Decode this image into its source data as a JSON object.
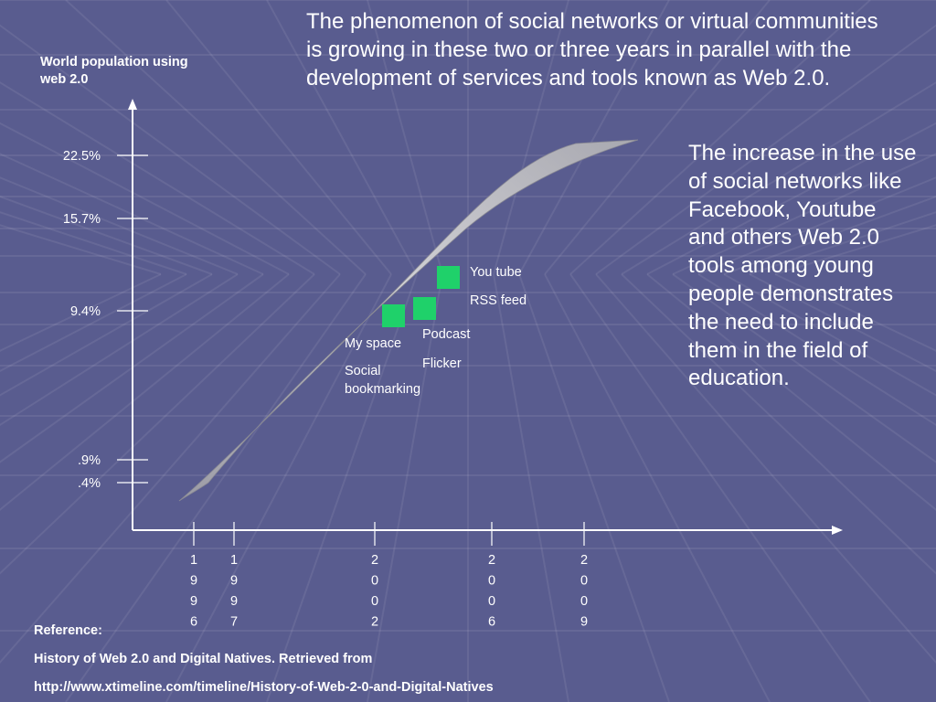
{
  "slide": {
    "intro_text": "The phenomenon of social networks or virtual communities is growing in these two or three years in parallel with the development of services and tools known as Web 2.0.",
    "side_text": "The increase in the use of social networks like Facebook, Youtube and others Web 2.0 tools among young people demonstrates the need to include them in the field of education.",
    "reference_heading": "Reference:",
    "reference_title": "History of Web 2.0 and Digital Natives. Retrieved from",
    "reference_url": "http://www.xtimeline.com/timeline/History-of-Web-2-0-and-Digital-Natives"
  },
  "colors": {
    "background": "#595c8f",
    "text": "#ffffff",
    "marker": "#1fd16a",
    "curve": "#c0c0c4"
  },
  "chart_data": {
    "type": "line",
    "title": "",
    "ylabel": "World population using web 2.0",
    "xlabel": "",
    "y_ticks": [
      "22.5%",
      "15.7%",
      "9.4%",
      ".9%",
      ".4%"
    ],
    "x_ticks": [
      "1996",
      "1997",
      "2002",
      "2006",
      "2009"
    ],
    "series": [
      {
        "values": []
      }
    ],
    "markers": [
      {
        "labels": [
          "My space",
          "Social bookmarking"
        ]
      },
      {
        "labels": [
          "Podcast",
          "Flicker"
        ]
      },
      {
        "labels": [
          "You tube",
          "RSS feed"
        ]
      }
    ]
  }
}
